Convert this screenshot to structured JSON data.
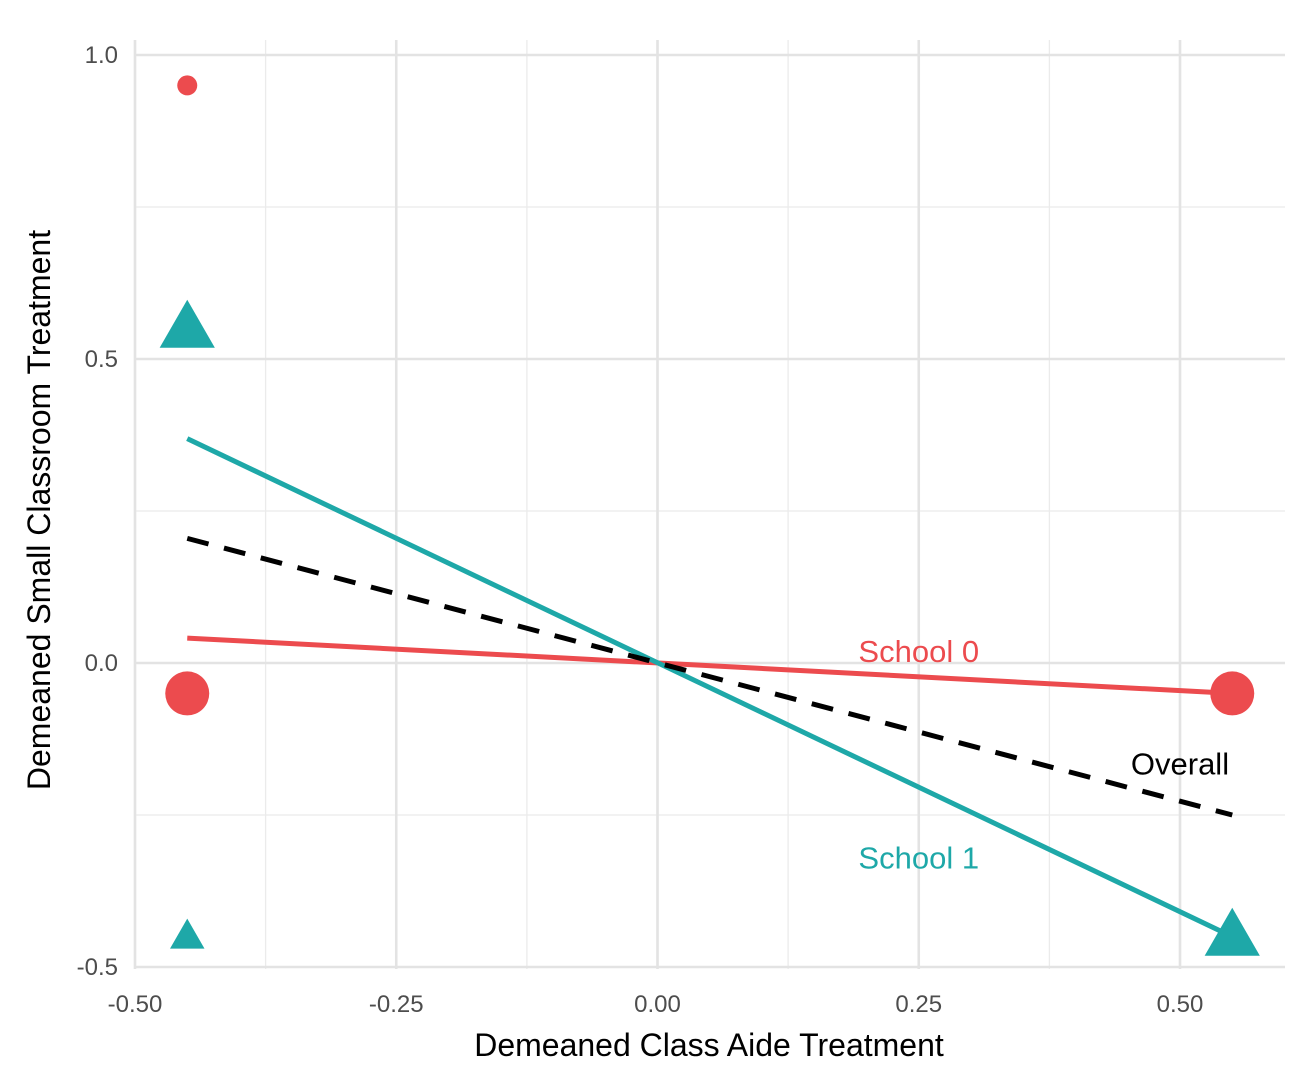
{
  "chart_data": {
    "type": "scatter",
    "title": "",
    "xlabel": "Demeaned Class Aide Treatment",
    "ylabel": "Demeaned Small Classroom Treatment",
    "xlim": [
      -0.5,
      0.6
    ],
    "ylim": [
      -0.5,
      1.02
    ],
    "x_ticks": [
      -0.5,
      -0.25,
      0.0,
      0.25,
      0.5
    ],
    "x_tick_labels": [
      "-0.50",
      "-0.25",
      "0.00",
      "0.25",
      "0.50"
    ],
    "y_ticks": [
      -0.5,
      0.0,
      0.5,
      1.0
    ],
    "y_tick_labels": [
      "-0.5",
      "0.0",
      "0.5",
      "1.0"
    ],
    "grid": true,
    "points": [
      {
        "group": "School 0",
        "shape": "circle",
        "x": -0.45,
        "y": 0.95,
        "size": "small"
      },
      {
        "group": "School 0",
        "shape": "circle",
        "x": -0.45,
        "y": -0.05,
        "size": "large"
      },
      {
        "group": "School 0",
        "shape": "circle",
        "x": 0.55,
        "y": -0.05,
        "size": "large"
      },
      {
        "group": "School 1",
        "shape": "triangle",
        "x": -0.45,
        "y": 0.55,
        "size": "large"
      },
      {
        "group": "School 1",
        "shape": "triangle",
        "x": -0.45,
        "y": -0.45,
        "size": "small"
      },
      {
        "group": "School 1",
        "shape": "triangle",
        "x": 0.55,
        "y": -0.45,
        "size": "large"
      }
    ],
    "lines": [
      {
        "name": "School 0",
        "style": "solid",
        "color": "#ec4b4e",
        "x": [
          -0.45,
          0.55
        ],
        "y": [
          0.041,
          -0.05
        ],
        "label_at": [
          0.25,
          0.02
        ]
      },
      {
        "name": "School 1",
        "style": "solid",
        "color": "#1ea8a8",
        "x": [
          -0.45,
          0.55
        ],
        "y": [
          0.369,
          -0.45
        ],
        "label_at": [
          0.25,
          -0.32
        ]
      },
      {
        "name": "Overall",
        "style": "dashed",
        "color": "#000000",
        "x": [
          -0.45,
          0.55
        ],
        "y": [
          0.205,
          -0.25
        ],
        "label_at": [
          0.5,
          -0.165
        ]
      }
    ],
    "colors": {
      "School 0": "#ec4b4e",
      "School 1": "#1ea8a8",
      "Overall": "#000000"
    }
  }
}
